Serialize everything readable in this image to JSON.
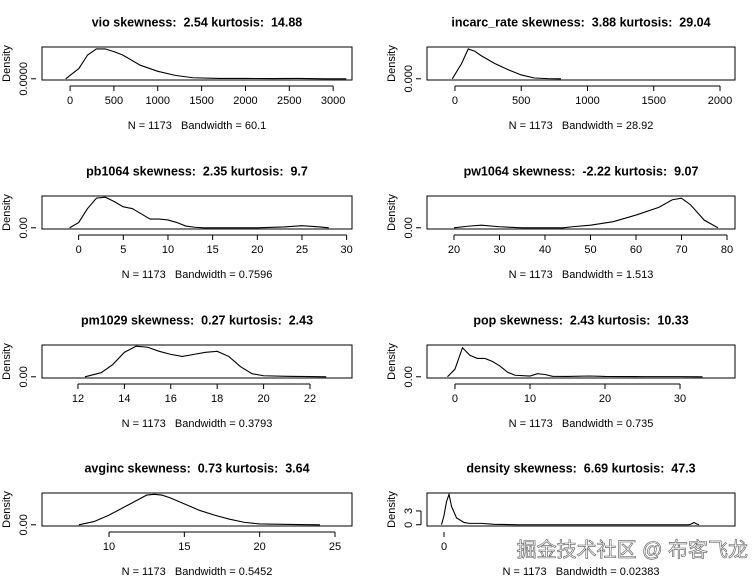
{
  "chart_data": [
    {
      "type": "line",
      "title": "vio skewness:  2.54 kurtosis:  14.88",
      "xlabel": "N = 1173   Bandwidth = 60.1",
      "ylabel": "Density",
      "color": "#000000",
      "x": [
        -50,
        100,
        200,
        300,
        400,
        500,
        600,
        800,
        1000,
        1200,
        1400,
        1700,
        2000,
        2300,
        2600,
        2900,
        3150
      ],
      "values": [
        0,
        0.0003,
        0.0007,
        0.00088,
        0.00088,
        0.0008,
        0.0007,
        0.0004,
        0.00022,
        0.0001,
        3e-05,
        1e-05,
        1e-05,
        5e-06,
        1e-05,
        0,
        0
      ],
      "xlim": [
        -320,
        3215
      ],
      "ylim": [
        -3.6e-05,
        0.000936
      ],
      "xticks": [
        0,
        500,
        1000,
        1500,
        2000,
        2500,
        3000
      ],
      "yticks": [
        {
          "value": 0,
          "label": "0.0000"
        }
      ]
    },
    {
      "type": "line",
      "title": "incarc_rate skewness:  3.88 kurtosis:  29.04",
      "xlabel": "N = 1173   Bandwidth = 28.92",
      "ylabel": "Density",
      "color": "#000000",
      "x": [
        -20,
        50,
        100,
        150,
        200,
        300,
        400,
        500,
        600,
        700,
        800
      ],
      "values": [
        0,
        0.002,
        0.0039,
        0.0036,
        0.003,
        0.002,
        0.0012,
        0.0005,
        0.0001,
        2e-05,
        0
      ],
      "xlim": [
        -211,
        2113
      ],
      "ylim": [
        -0.00016,
        0.00416
      ],
      "xticks": [
        0,
        500,
        1000,
        1500,
        2000
      ],
      "yticks": [
        {
          "value": 0,
          "label": "0.000"
        }
      ]
    },
    {
      "type": "line",
      "title": "pb1064 skewness:  2.35 kurtosis:  9.7",
      "xlabel": "N = 1173   Bandwidth = 0.7596",
      "ylabel": "Density",
      "color": "#000000",
      "x": [
        -1,
        0,
        1,
        2,
        3,
        4,
        5,
        6,
        7,
        8,
        9,
        10,
        11,
        12,
        13,
        14,
        16,
        20,
        23,
        25,
        27,
        28
      ],
      "values": [
        0,
        0.03,
        0.11,
        0.17,
        0.175,
        0.15,
        0.12,
        0.11,
        0.08,
        0.05,
        0.05,
        0.045,
        0.03,
        0.01,
        0.003,
        0,
        0,
        0,
        0.005,
        0.012,
        0.005,
        0
      ],
      "xlim": [
        -4.1,
        30.6
      ],
      "ylim": [
        -0.007,
        0.182
      ],
      "xticks": [
        0,
        5,
        10,
        15,
        20,
        25,
        30
      ],
      "yticks": [
        {
          "value": 0,
          "label": "0.00"
        }
      ]
    },
    {
      "type": "line",
      "title": "pw1064 skewness:  -2.22 kurtosis:  9.07",
      "xlabel": "N = 1173   Bandwidth = 1.513",
      "ylabel": "Density",
      "color": "#000000",
      "x": [
        20,
        23,
        26,
        30,
        35,
        40,
        44,
        46,
        50,
        55,
        60,
        65,
        68,
        70,
        72,
        75,
        78
      ],
      "values": [
        0,
        0.003,
        0.005,
        0.002,
        0,
        0,
        0,
        0.002,
        0.005,
        0.012,
        0.025,
        0.04,
        0.055,
        0.058,
        0.045,
        0.015,
        0
      ],
      "xlim": [
        14.07,
        81.76
      ],
      "ylim": [
        -0.0024,
        0.0624
      ],
      "xticks": [
        20,
        30,
        40,
        50,
        60,
        70,
        80
      ],
      "yticks": [
        {
          "value": 0,
          "label": "0.00"
        }
      ]
    },
    {
      "type": "line",
      "title": "pm1029 skewness:  0.27 kurtosis:  2.43",
      "xlabel": "N = 1173   Bandwidth = 0.3793",
      "ylabel": "Density",
      "color": "#000000",
      "x": [
        12.3,
        13,
        13.5,
        14,
        14.5,
        15,
        15.5,
        16,
        16.5,
        17,
        17.5,
        18,
        18.5,
        19,
        19.5,
        20,
        21,
        22,
        22.7
      ],
      "values": [
        0,
        0.04,
        0.12,
        0.24,
        0.3,
        0.29,
        0.25,
        0.22,
        0.2,
        0.22,
        0.24,
        0.25,
        0.2,
        0.1,
        0.03,
        0.01,
        0.005,
        0.002,
        0
      ],
      "xlim": [
        10.45,
        23.81
      ],
      "ylim": [
        -0.012,
        0.312
      ],
      "xticks": [
        12,
        14,
        16,
        18,
        20,
        22
      ],
      "yticks": [
        {
          "value": 0,
          "label": "0.00"
        }
      ]
    },
    {
      "type": "line",
      "title": "pop skewness:  2.43 kurtosis:  10.33",
      "xlabel": "N = 1173   Bandwidth = 0.735",
      "ylabel": "Density",
      "color": "#000000",
      "x": [
        -1,
        0,
        1,
        2,
        3,
        4,
        5,
        6,
        7,
        8,
        10,
        11,
        12,
        13,
        15,
        18,
        20,
        25,
        30,
        33
      ],
      "values": [
        0,
        0.05,
        0.19,
        0.14,
        0.12,
        0.12,
        0.1,
        0.07,
        0.03,
        0.01,
        0.005,
        0.02,
        0.015,
        0.003,
        0.002,
        0.005,
        0.002,
        0.001,
        0.001,
        0
      ],
      "xlim": [
        -3.73,
        37.33
      ],
      "ylim": [
        -0.008,
        0.208
      ],
      "xticks": [
        0,
        10,
        20,
        30
      ],
      "yticks": [
        {
          "value": 0,
          "label": "0.00"
        }
      ]
    },
    {
      "type": "line",
      "title": "avginc skewness:  0.73 kurtosis:  3.64",
      "xlabel": "N = 1173   Bandwidth = 0.5452",
      "ylabel": "Density",
      "color": "#000000",
      "x": [
        8,
        9,
        10,
        11,
        12,
        12.5,
        13,
        13.5,
        14,
        15,
        16,
        17,
        18,
        19,
        20,
        22,
        24
      ],
      "values": [
        0,
        0.02,
        0.06,
        0.11,
        0.16,
        0.185,
        0.19,
        0.185,
        0.17,
        0.13,
        0.09,
        0.06,
        0.035,
        0.015,
        0.005,
        0.002,
        0
      ],
      "xlim": [
        5.55,
        26.13
      ],
      "ylim": [
        -0.0076,
        0.198
      ],
      "xticks": [
        10,
        15,
        20,
        25
      ],
      "yticks": [
        {
          "value": 0,
          "label": "0.00"
        }
      ]
    },
    {
      "type": "line",
      "title": "density skewness:  6.69 kurtosis:  47.3",
      "xlabel": "N = 1173   Bandwidth = 0.02383",
      "ylabel": "Density",
      "color": "#000000",
      "x": [
        -0.1,
        0,
        0.1,
        0.2,
        0.3,
        0.5,
        0.8,
        1,
        1.5,
        2,
        3,
        9.8,
        9.9,
        10,
        10.1,
        10.2
      ],
      "values": [
        0,
        2,
        5,
        6.6,
        4,
        1.5,
        0.5,
        0.3,
        0.3,
        0.1,
        0,
        0,
        0.2,
        0.5,
        0.2,
        0
      ],
      "xlim": [
        -0.68,
        11.64
      ],
      "ylim": [
        -0.27,
        6.9
      ],
      "xticks": [
        0
      ],
      "yticks": [
        0,
        3
      ]
    }
  ],
  "watermark": "掘金技术社区 @ 布客飞龙"
}
